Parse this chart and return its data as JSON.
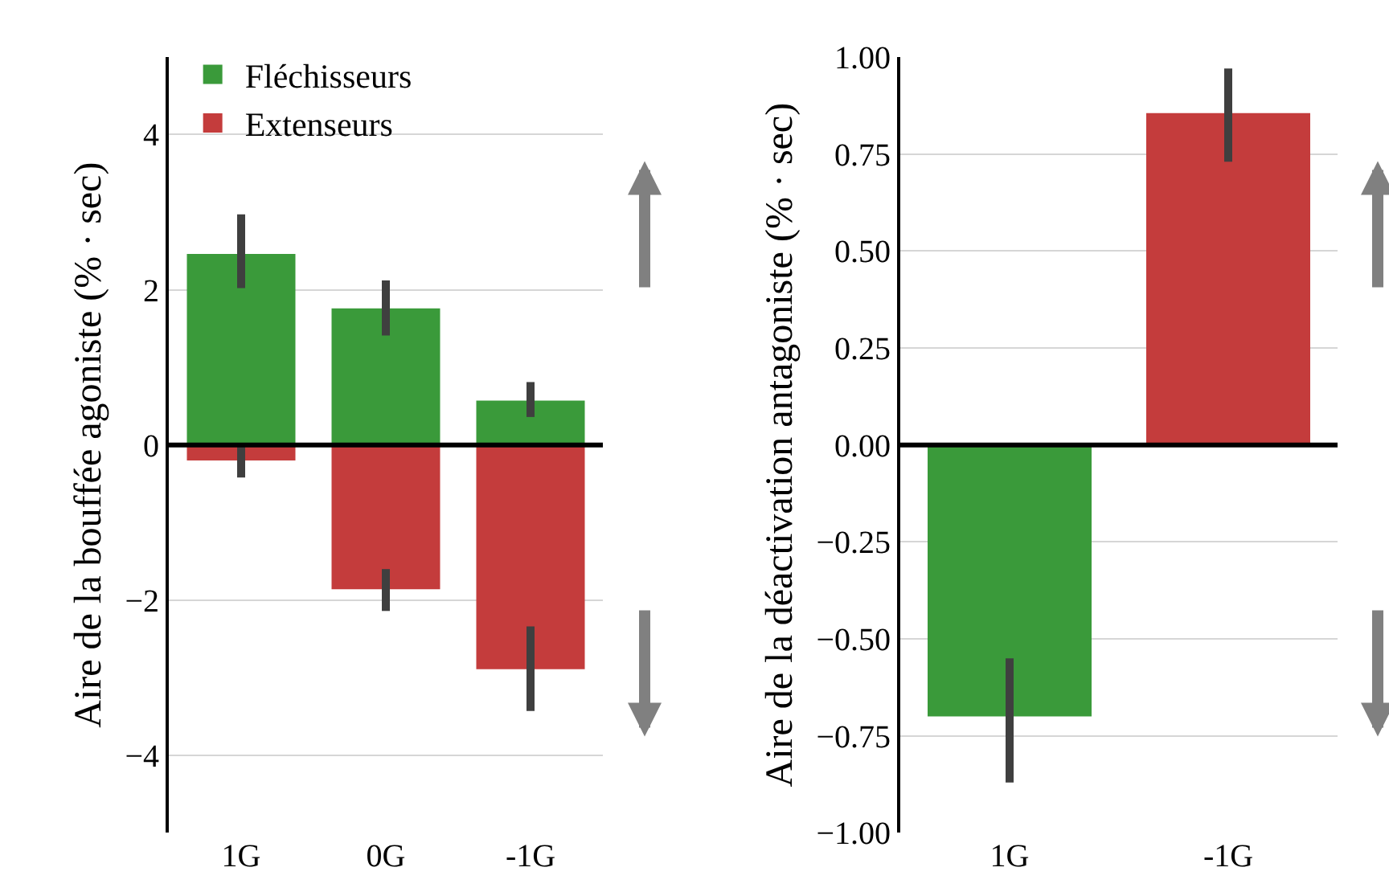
{
  "chart_data": [
    {
      "type": "bar",
      "categories": [
        "1G",
        "0G",
        "-1G"
      ],
      "series": [
        {
          "name": "Fléchisseurs",
          "color": "#3a9a3a",
          "values": [
            2.46,
            1.76,
            0.57
          ],
          "errors": [
            [
              2.02,
              2.97
            ],
            [
              1.41,
              2.12
            ],
            [
              0.36,
              0.81
            ]
          ]
        },
        {
          "name": "Extenseurs",
          "color": "#c43c3c",
          "values": [
            -0.2,
            -1.86,
            -2.89
          ],
          "errors": [
            [
              -0.42,
              0.0
            ],
            [
              -2.14,
              -1.6
            ],
            [
              -3.43,
              -2.34
            ]
          ]
        }
      ],
      "stacked": true,
      "ylabel": "Aire de la bouffée agoniste (% · sec)",
      "ylim": [
        -5,
        5
      ],
      "yticks": [
        -4,
        -2,
        0,
        2,
        4
      ],
      "grid": "y",
      "legend": "top left",
      "ref_lines": [
        {
          "axis": "y",
          "value": 0,
          "color": "#000000"
        }
      ]
    },
    {
      "type": "bar",
      "categories": [
        "1G",
        "-1G"
      ],
      "values": [
        -0.7,
        0.855
      ],
      "colors": [
        "#3a9a3a",
        "#c43c3c"
      ],
      "errors": [
        [
          -0.87,
          -0.55
        ],
        [
          0.73,
          0.97
        ]
      ],
      "ylabel": "Aire de la déactivation antagoniste (% · sec)",
      "ylim": [
        -1.0,
        1.0
      ],
      "yticks": [
        {
          "value": -1.0,
          "label": "−1.00"
        },
        {
          "value": -0.75,
          "label": "−0.75"
        },
        {
          "value": -0.5,
          "label": "−0.50"
        },
        {
          "value": -0.25,
          "label": "−0.25"
        },
        {
          "value": 0.0,
          "label": "0.00"
        },
        {
          "value": 0.25,
          "label": "0.25"
        },
        {
          "value": 0.5,
          "label": "0.50"
        },
        {
          "value": 0.75,
          "label": "0.75"
        },
        {
          "value": 1.0,
          "label": "1.00"
        }
      ],
      "grid": "y",
      "ref_lines": [
        {
          "axis": "y",
          "value": 0,
          "color": "#000000"
        }
      ]
    }
  ]
}
